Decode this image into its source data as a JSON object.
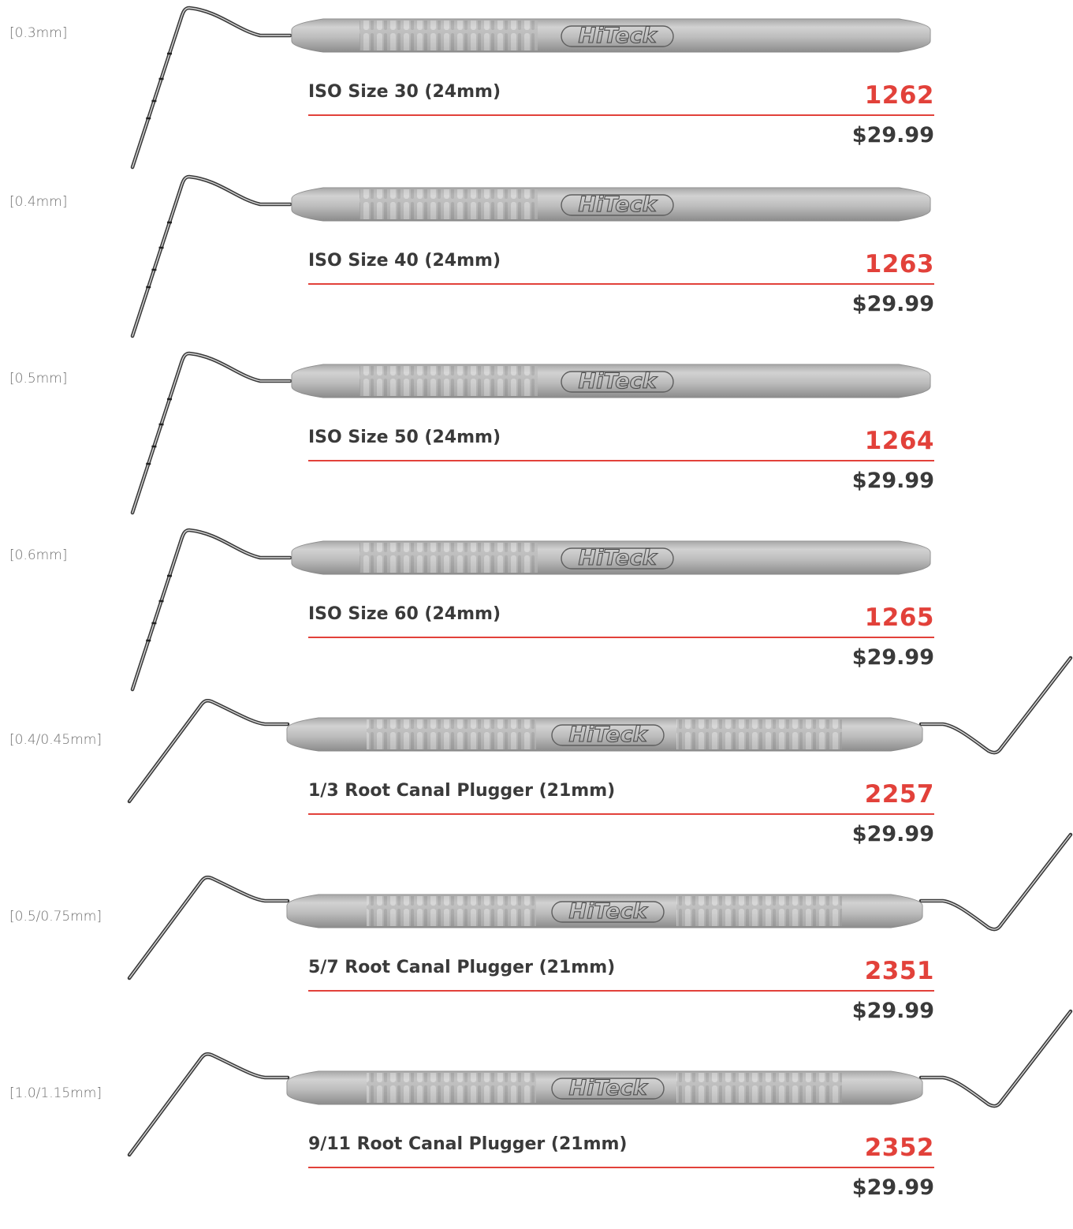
{
  "brand": {
    "logo_text": "HiTeck",
    "accent_color": "#e2413a"
  },
  "products": [
    {
      "size_label": "[0.3mm]",
      "name": "ISO Size 30 (24mm)",
      "code": "1262",
      "price": "$29.99",
      "tool_type": "spreader-single-end"
    },
    {
      "size_label": "[0.4mm]",
      "name": "ISO Size 40  (24mm)",
      "code": "1263",
      "price": "$29.99",
      "tool_type": "spreader-single-end"
    },
    {
      "size_label": "[0.5mm]",
      "name": "ISO Size 50  (24mm)",
      "code": "1264",
      "price": "$29.99",
      "tool_type": "spreader-single-end"
    },
    {
      "size_label": "[0.6mm]",
      "name": "ISO Size 60 (24mm)",
      "code": "1265",
      "price": "$29.99",
      "tool_type": "spreader-single-end"
    },
    {
      "size_label": "[0.4/0.45mm]",
      "name": "1/3 Root Canal Plugger (21mm)",
      "code": "2257",
      "price": "$29.99",
      "tool_type": "plugger-double-end"
    },
    {
      "size_label": "[0.5/0.75mm]",
      "name": "5/7 Root Canal Plugger (21mm)",
      "code": "2351",
      "price": "$29.99",
      "tool_type": "plugger-double-end"
    },
    {
      "size_label": "[1.0/1.15mm]",
      "name": "9/11 Root Canal Plugger (21mm)",
      "code": "2352",
      "price": "$29.99",
      "tool_type": "plugger-double-end"
    }
  ]
}
